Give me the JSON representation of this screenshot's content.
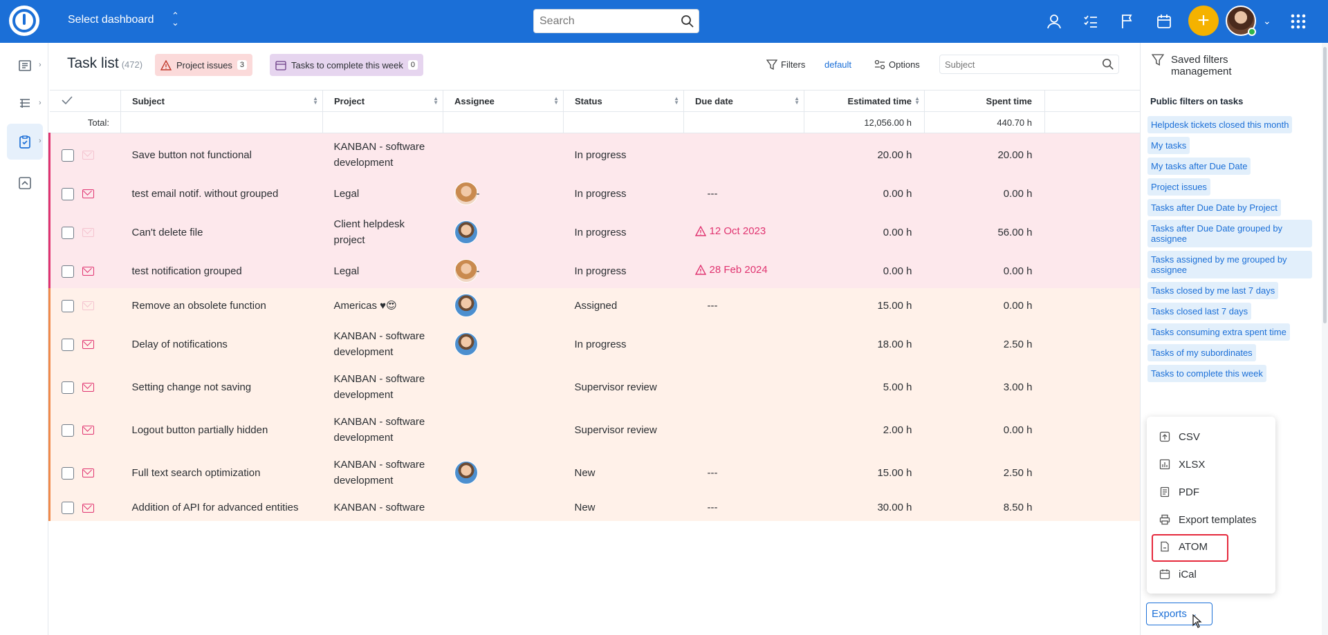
{
  "topbar": {
    "dashboard_label": "Select dashboard",
    "search_placeholder": "Search",
    "plus_label": "+"
  },
  "header": {
    "title": "Task list",
    "count": "(472)",
    "badges": [
      {
        "label": "Project issues",
        "count": "3"
      },
      {
        "label": "Tasks to complete this week",
        "count": "0"
      }
    ],
    "filters_label": "Filters",
    "default_label": "default",
    "options_label": "Options",
    "subject_placeholder": "Subject"
  },
  "table": {
    "columns": [
      "Subject",
      "Project",
      "Assignee",
      "Status",
      "Due date",
      "Estimated time",
      "Spent time"
    ],
    "total_label": "Total:",
    "total_estimated": "12,056.00 h",
    "total_spent": "440.70 h",
    "rows": [
      {
        "subject": "Save button not functional",
        "project": "KANBAN - software development",
        "assignee": "",
        "status": "In progress",
        "due": "",
        "due_overdue": false,
        "estimated": "20.00 h",
        "spent": "20.00 h",
        "tone": "pink",
        "mail_faded": true
      },
      {
        "subject": "test email notif. without grouped",
        "project": "Legal",
        "assignee": "f",
        "status": "In progress",
        "due": "---",
        "due_overdue": false,
        "estimated": "0.00 h",
        "spent": "0.00 h",
        "tone": "pink",
        "mail_faded": false
      },
      {
        "subject": "Can't delete file",
        "project": "Client helpdesk project",
        "assignee": "m",
        "status": "In progress",
        "due": "12 Oct 2023",
        "due_overdue": true,
        "estimated": "0.00 h",
        "spent": "56.00 h",
        "tone": "pink",
        "mail_faded": true
      },
      {
        "subject": "test notification grouped",
        "project": "Legal",
        "assignee": "f",
        "status": "In progress",
        "due": "28 Feb 2024",
        "due_overdue": true,
        "estimated": "0.00 h",
        "spent": "0.00 h",
        "tone": "pink",
        "mail_faded": false
      },
      {
        "subject": "Remove an obsolete function",
        "project": "Americas ♥😍",
        "assignee": "m",
        "status": "Assigned",
        "due": "---",
        "due_overdue": false,
        "estimated": "15.00 h",
        "spent": "0.00 h",
        "tone": "peach",
        "mail_faded": true
      },
      {
        "subject": "Delay of notifications",
        "project": "KANBAN - software development",
        "assignee": "m",
        "status": "In progress",
        "due": "",
        "due_overdue": false,
        "estimated": "18.00 h",
        "spent": "2.50 h",
        "tone": "peach",
        "mail_faded": false
      },
      {
        "subject": "Setting change not saving",
        "project": "KANBAN - software development",
        "assignee": "",
        "status": "Supervisor review",
        "due": "",
        "due_overdue": false,
        "estimated": "5.00 h",
        "spent": "3.00 h",
        "tone": "peach",
        "mail_faded": false
      },
      {
        "subject": "Logout button partially hidden",
        "project": "KANBAN - software development",
        "assignee": "",
        "status": "Supervisor review",
        "due": "",
        "due_overdue": false,
        "estimated": "2.00 h",
        "spent": "0.00 h",
        "tone": "peach",
        "mail_faded": false
      },
      {
        "subject": "Full text search optimization",
        "project": "KANBAN - software development",
        "assignee": "m",
        "status": "New",
        "due": "---",
        "due_overdue": false,
        "estimated": "15.00 h",
        "spent": "2.50 h",
        "tone": "peach",
        "mail_faded": false
      },
      {
        "subject": "Addition of API for advanced entities",
        "project": "KANBAN - software",
        "assignee": "",
        "status": "New",
        "due": "---",
        "due_overdue": false,
        "estimated": "30.00 h",
        "spent": "8.50 h",
        "tone": "peach",
        "mail_faded": false
      }
    ]
  },
  "right_panel": {
    "title": "Saved filters management",
    "subtitle": "Public filters on tasks",
    "filters": [
      "Helpdesk tickets closed this month",
      "My tasks",
      "My tasks after Due Date",
      "Project issues",
      "Tasks after Due Date by Project",
      "Tasks after Due Date grouped by assignee",
      "Tasks assigned by me grouped by assignee",
      "Tasks closed by me last 7 days",
      "Tasks closed last 7 days",
      "Tasks consuming extra spent time",
      "Tasks of my subordinates",
      "Tasks to complete this week"
    ],
    "export_menu": [
      "CSV",
      "XLSX",
      "PDF",
      "Export templates",
      "ATOM",
      "iCal"
    ],
    "exports_label": "Exports"
  },
  "colors": {
    "accent": "#1b6fd7",
    "overdue": "#e03370",
    "highlight": "#e5283b"
  }
}
